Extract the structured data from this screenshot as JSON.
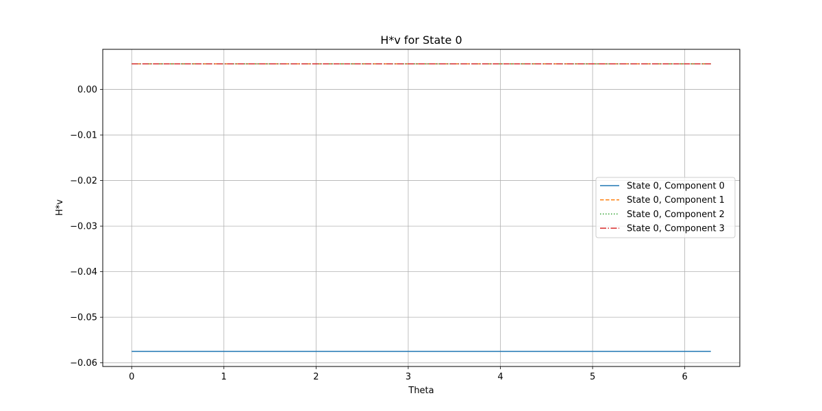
{
  "chart_data": {
    "type": "line",
    "title": "H*v for State 0",
    "xlabel": "Theta",
    "ylabel": "H*v",
    "xlim": [
      -0.314,
      6.597
    ],
    "ylim": [
      -0.0608,
      0.0088
    ],
    "xticks": [
      0,
      1,
      2,
      3,
      4,
      5,
      6
    ],
    "xtick_labels": [
      "0",
      "1",
      "2",
      "3",
      "4",
      "5",
      "6"
    ],
    "yticks": [
      0.0,
      -0.01,
      -0.02,
      -0.03,
      -0.04,
      -0.05,
      -0.06
    ],
    "ytick_labels": [
      "0.00",
      "−0.01",
      "−0.02",
      "−0.03",
      "−0.04",
      "−0.05",
      "−0.06"
    ],
    "grid": true,
    "legend_position": "center-right",
    "series": [
      {
        "name": "State 0, Component 0",
        "x": [
          0,
          6.283
        ],
        "y": [
          -0.0575,
          -0.0575
        ],
        "color": "#1f77b4",
        "style": "solid"
      },
      {
        "name": "State 0, Component 1",
        "x": [
          0,
          6.283
        ],
        "y": [
          0.0056,
          0.0056
        ],
        "color": "#ff7f0e",
        "style": "dashed"
      },
      {
        "name": "State 0, Component 2",
        "x": [
          0,
          6.283
        ],
        "y": [
          0.0056,
          0.0056
        ],
        "color": "#2ca02c",
        "style": "dotted"
      },
      {
        "name": "State 0, Component 3",
        "x": [
          0,
          6.283
        ],
        "y": [
          0.0056,
          0.0056
        ],
        "color": "#d62728",
        "style": "dashdot"
      }
    ]
  }
}
